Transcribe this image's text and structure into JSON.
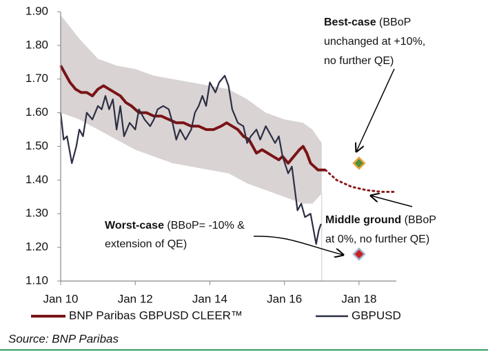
{
  "chart_data": {
    "type": "line",
    "xlim": [
      2010,
      2019
    ],
    "ylim": [
      1.1,
      1.9
    ],
    "xticks": [
      {
        "value": 2010,
        "label": "Jan 10"
      },
      {
        "value": 2012,
        "label": "Jan 12"
      },
      {
        "value": 2014,
        "label": "Jan 14"
      },
      {
        "value": 2016,
        "label": "Jan 16"
      },
      {
        "value": 2018,
        "label": "Jan 18"
      }
    ],
    "yticks": [
      {
        "value": 1.1,
        "label": "1.10"
      },
      {
        "value": 1.2,
        "label": "1.20"
      },
      {
        "value": 1.3,
        "label": "1.30"
      },
      {
        "value": 1.4,
        "label": "1.40"
      },
      {
        "value": 1.5,
        "label": "1.50"
      },
      {
        "value": 1.6,
        "label": "1.60"
      },
      {
        "value": 1.7,
        "label": "1.70"
      },
      {
        "value": 1.8,
        "label": "1.80"
      },
      {
        "value": 1.9,
        "label": "1.90"
      }
    ],
    "band": {
      "color": "#d9d3d3",
      "x": [
        2010,
        2010.5,
        2011,
        2011.5,
        2012,
        2012.5,
        2013,
        2013.5,
        2014,
        2014.5,
        2015,
        2015.5,
        2016,
        2016.5,
        2016.75,
        2017
      ],
      "upper": [
        1.89,
        1.82,
        1.76,
        1.74,
        1.73,
        1.71,
        1.7,
        1.69,
        1.68,
        1.67,
        1.64,
        1.6,
        1.58,
        1.57,
        1.55,
        1.51
      ],
      "lower": [
        1.6,
        1.58,
        1.55,
        1.52,
        1.49,
        1.47,
        1.45,
        1.44,
        1.43,
        1.42,
        1.39,
        1.37,
        1.35,
        1.33,
        1.33,
        1.36
      ]
    },
    "series": [
      {
        "name": "BNP Paribas GBPUSD CLEER™",
        "color": "#7a1315",
        "x": [
          2010,
          2010.1,
          2010.25,
          2010.4,
          2010.55,
          2010.7,
          2010.85,
          2011,
          2011.15,
          2011.3,
          2011.45,
          2011.6,
          2011.75,
          2011.9,
          2012.1,
          2012.3,
          2012.5,
          2012.7,
          2012.9,
          2013.1,
          2013.3,
          2013.5,
          2013.7,
          2013.9,
          2014.1,
          2014.3,
          2014.45,
          2014.6,
          2014.75,
          2014.9,
          2015.05,
          2015.15,
          2015.25,
          2015.4,
          2015.55,
          2015.7,
          2015.85,
          2015.95,
          2016.1,
          2016.25,
          2016.4,
          2016.5,
          2016.6,
          2016.7,
          2016.8,
          2016.9,
          2017.1
        ],
        "values": [
          1.74,
          1.72,
          1.69,
          1.67,
          1.66,
          1.66,
          1.65,
          1.67,
          1.68,
          1.67,
          1.66,
          1.65,
          1.63,
          1.62,
          1.6,
          1.6,
          1.59,
          1.59,
          1.58,
          1.57,
          1.57,
          1.56,
          1.56,
          1.55,
          1.55,
          1.56,
          1.57,
          1.56,
          1.55,
          1.53,
          1.52,
          1.5,
          1.48,
          1.49,
          1.48,
          1.47,
          1.46,
          1.47,
          1.45,
          1.47,
          1.49,
          1.5,
          1.48,
          1.45,
          1.44,
          1.43,
          1.43
        ]
      },
      {
        "name": "GBPUSD",
        "color": "#2b2d42",
        "x": [
          2010,
          2010.08,
          2010.17,
          2010.3,
          2010.42,
          2010.5,
          2010.6,
          2010.7,
          2010.85,
          2011,
          2011.1,
          2011.2,
          2011.3,
          2011.4,
          2011.5,
          2011.6,
          2011.7,
          2011.85,
          2012,
          2012.1,
          2012.25,
          2012.4,
          2012.5,
          2012.6,
          2012.75,
          2012.9,
          2013,
          2013.1,
          2013.2,
          2013.35,
          2013.5,
          2013.6,
          2013.7,
          2013.8,
          2013.9,
          2014,
          2014.15,
          2014.25,
          2014.4,
          2014.5,
          2014.6,
          2014.75,
          2014.9,
          2015,
          2015.1,
          2015.25,
          2015.35,
          2015.5,
          2015.6,
          2015.75,
          2015.85,
          2015.95,
          2016.1,
          2016.2,
          2016.35,
          2016.45,
          2016.55,
          2016.7,
          2016.85,
          2016.92,
          2016.98
        ],
        "values": [
          1.6,
          1.52,
          1.53,
          1.45,
          1.5,
          1.55,
          1.53,
          1.6,
          1.58,
          1.62,
          1.61,
          1.65,
          1.61,
          1.64,
          1.55,
          1.62,
          1.53,
          1.57,
          1.55,
          1.61,
          1.58,
          1.56,
          1.58,
          1.61,
          1.62,
          1.61,
          1.57,
          1.52,
          1.55,
          1.52,
          1.55,
          1.6,
          1.62,
          1.65,
          1.62,
          1.69,
          1.66,
          1.69,
          1.71,
          1.68,
          1.61,
          1.57,
          1.56,
          1.51,
          1.53,
          1.55,
          1.52,
          1.56,
          1.54,
          1.51,
          1.53,
          1.47,
          1.42,
          1.44,
          1.31,
          1.33,
          1.29,
          1.3,
          1.21,
          1.25,
          1.27
        ]
      }
    ],
    "projection": {
      "color": "#8b1a1a",
      "x": [
        2017.1,
        2017.4,
        2017.8,
        2018.2,
        2018.6,
        2019
      ],
      "values": [
        1.43,
        1.4,
        1.38,
        1.37,
        1.365,
        1.365
      ]
    },
    "scenarios": [
      {
        "x": 2018,
        "y": 1.45,
        "fill": "#4f8f3a",
        "stroke": "#e8a33d"
      },
      {
        "x": 2018,
        "y": 1.18,
        "fill": "#cc1f1f",
        "stroke": "#9fb4d0"
      }
    ],
    "annotations": [
      {
        "bold": "Best-case",
        "lines": [
          " (BBoP",
          "unchanged at +10%,",
          "no further QE)"
        ]
      },
      {
        "bold": "Middle ground",
        "lines": [
          " (BBoP",
          "at 0%, no further QE)"
        ]
      },
      {
        "bold": "Worst-case",
        "lines": [
          " (BBoP= -10% &",
          "extension of QE)"
        ]
      }
    ],
    "source": "Source: BNP Paribas"
  }
}
